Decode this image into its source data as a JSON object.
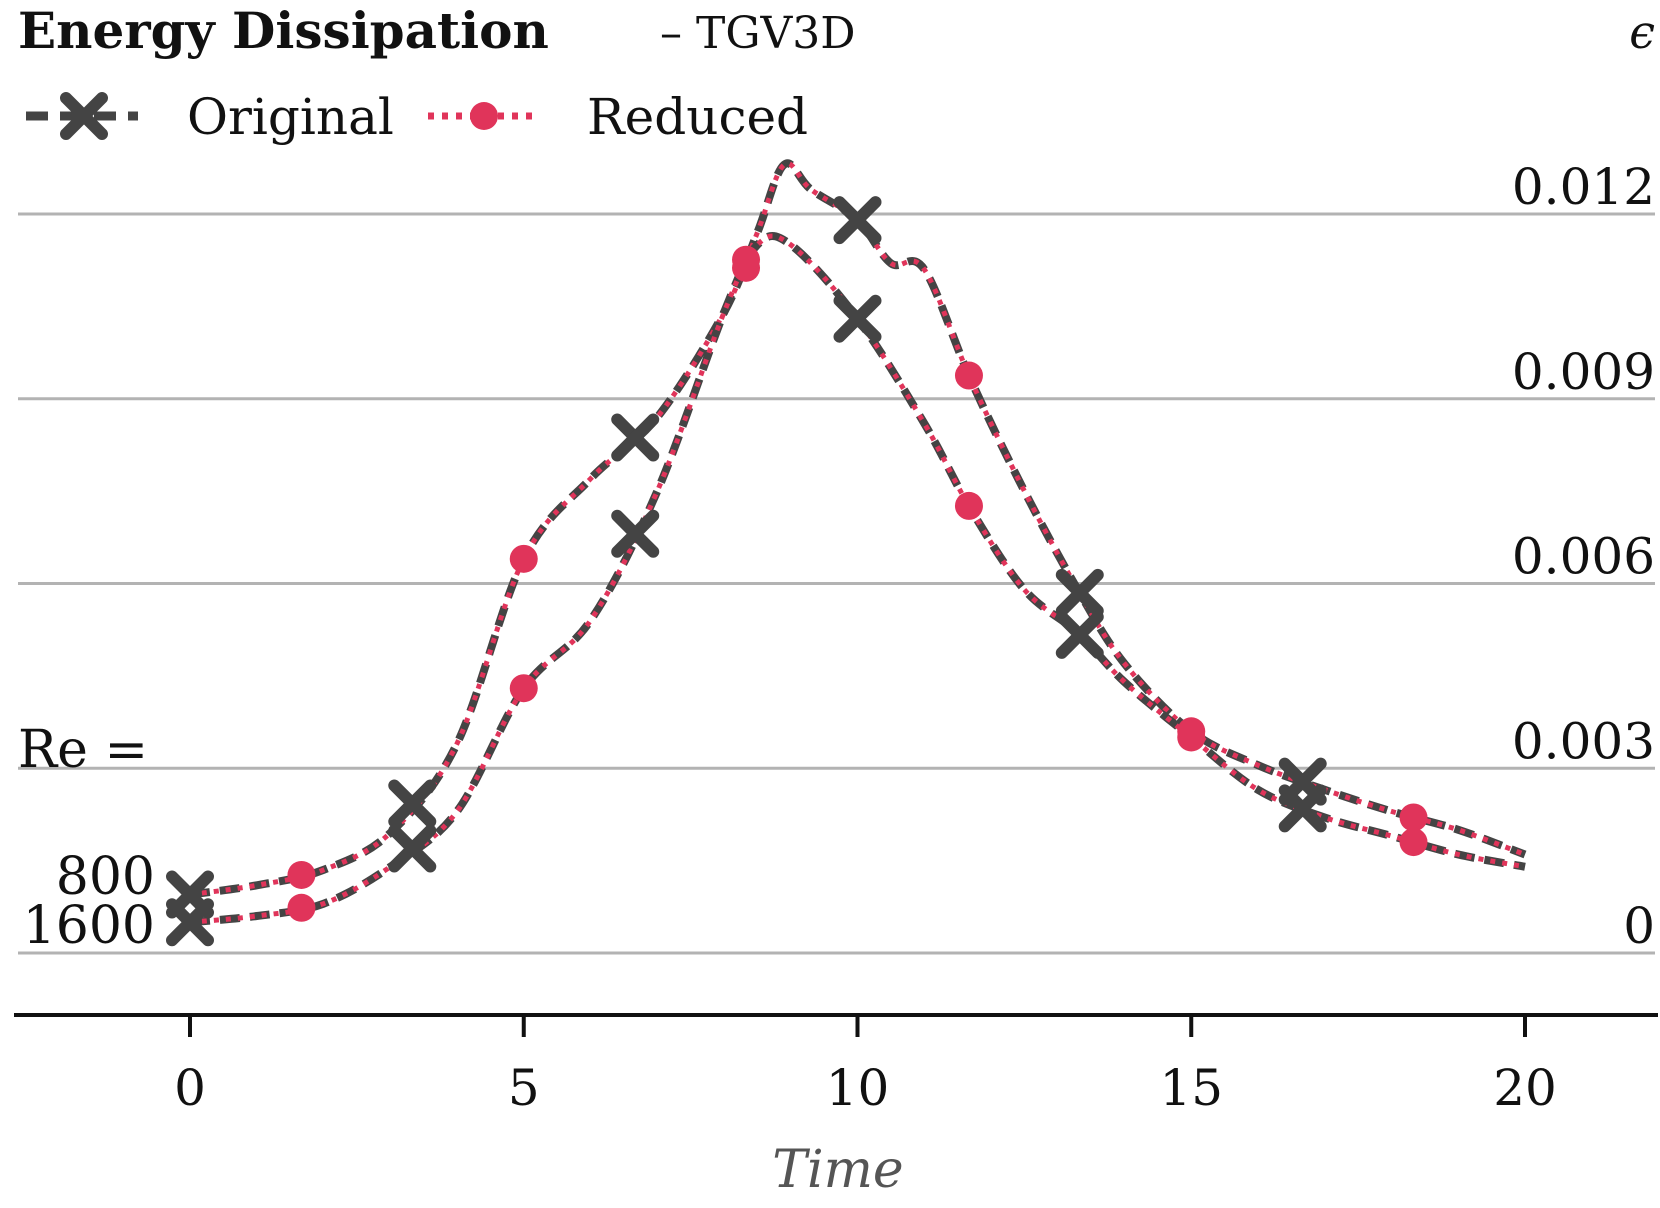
{
  "chart_data": {
    "type": "line",
    "title": "Energy Dissipation",
    "subtitle": "– TGV3D",
    "xlabel": "Time",
    "ylabel": "ϵ",
    "xlim": [
      -2.6,
      22.1
    ],
    "ylim": [
      -0.001,
      0.0128
    ],
    "x_ticks": [
      0,
      5,
      10,
      15,
      20
    ],
    "x_tick_labels": [
      "0",
      "5",
      "10",
      "15",
      "20"
    ],
    "y_ticks": [
      0,
      0.003,
      0.006,
      0.009,
      0.012
    ],
    "y_tick_labels": [
      "0",
      "0.003",
      "0.006",
      "0.009",
      "0.012"
    ],
    "grid": "horizontal",
    "legend": {
      "position": "top-left",
      "entries": [
        {
          "label": "Original",
          "color": "#444444",
          "marker": "x",
          "linestyle": "dashed"
        },
        {
          "label": "Reduced",
          "color": "#e0345a",
          "marker": "o",
          "linestyle": "dotted"
        }
      ]
    },
    "annotations": {
      "re_prefix": "Re =",
      "re_values": [
        "800",
        "1600"
      ]
    },
    "series": [
      {
        "name": "Re = 800",
        "x": [
          0,
          1,
          2,
          3,
          4,
          5,
          6,
          7,
          8,
          8.5,
          8.9,
          9.3,
          10,
          10.5,
          11,
          11.7,
          12.5,
          13.3,
          14,
          15,
          16,
          17,
          18,
          19,
          20
        ],
        "y": [
          0.00095,
          0.0011,
          0.00135,
          0.00195,
          0.0034,
          0.0064,
          0.0077,
          0.0087,
          0.0104,
          0.0117,
          0.0128,
          0.0124,
          0.0119,
          0.0112,
          0.0111,
          0.0093,
          0.0075,
          0.0059,
          0.0047,
          0.0036,
          0.00305,
          0.00265,
          0.0023,
          0.002,
          0.0016
        ]
      },
      {
        "name": "Re = 1600",
        "x": [
          0,
          1,
          2,
          3,
          4,
          5,
          6,
          7,
          8,
          8.5,
          9,
          10,
          11,
          11.7,
          12.5,
          13.3,
          14,
          15,
          16,
          17,
          18,
          19,
          20
        ],
        "y": [
          0.0005,
          0.0006,
          0.0008,
          0.0014,
          0.0023,
          0.0043,
          0.0054,
          0.0075,
          0.0104,
          0.0115,
          0.0115,
          0.0103,
          0.0086,
          0.0072,
          0.0059,
          0.0052,
          0.0044,
          0.0035,
          0.00265,
          0.0022,
          0.0019,
          0.0016,
          0.0014
        ]
      }
    ],
    "markers": {
      "original_x": [
        0,
        3.33,
        6.67,
        10,
        13.33,
        16.67
      ],
      "reduced_x": [
        1.67,
        5,
        8.33,
        11.67,
        15,
        18.33
      ]
    }
  }
}
